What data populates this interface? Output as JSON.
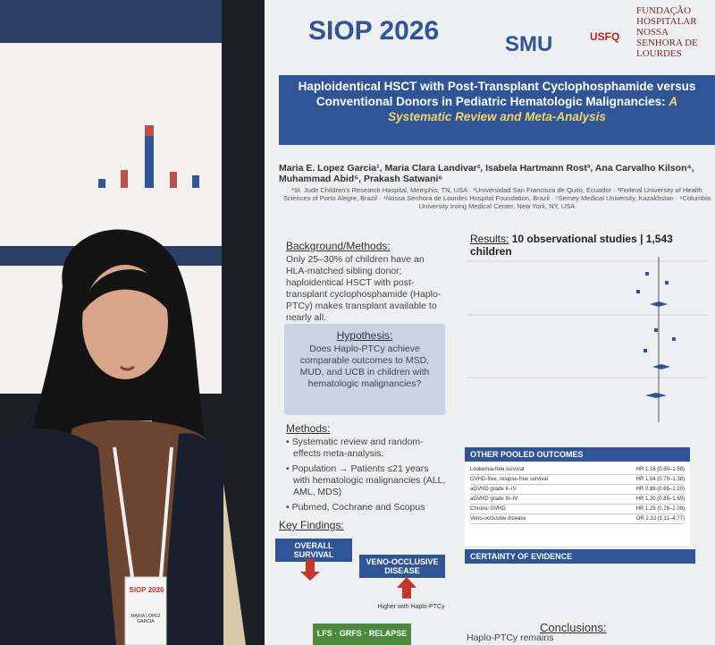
{
  "logos": {
    "siop": "SIOP 2026",
    "smu": "SMU",
    "usfq": "USFQ",
    "lourdes": "FUNDAÇÃO HOSPITALAR NOSSA SENHORA DE LOURDES"
  },
  "poster": {
    "title": "Haploidentical HSCT with Post-Transplant Cyclophosphamide versus Conventional Donors in Pediatric Hematologic Malignancies:",
    "title_highlight": "A Systematic Review and Meta-Analysis",
    "authors": "Maria E. Lopez Garcia¹, Maria Clara Landivar², Isabela Hartmann Rost³, Ana Carvalho Kilson⁴, Muhammad Abid⁵, Prakash Satwani⁶",
    "affiliations": "¹St. Jude Children's Research Hospital, Memphis, TN, USA · ²Universidad San Francisco de Quito, Ecuador · ³Federal University of Health Sciences of Porto Alegre, Brazil · ⁴Nossa Senhora de Lourdes Hospital Foundation, Brazil · ⁵Semey Medical University, Kazakhstan · ⁶Columbia University Irving Medical Center, New York, NY, USA",
    "background_heading": "Background/Methods:",
    "background_text": "Only 25–30% of children have an HLA-matched sibling donor; haploidentical HSCT with post-transplant cyclophosphamide (Haplo-PTCy) makes transplant available to nearly all.",
    "hypothesis_heading": "Hypothesis:",
    "hypothesis_text": "Does Haplo-PTCy achieve comparable outcomes to MSD, MUD, and UCB in children with hematologic malignancies?",
    "methods_heading": "Methods:",
    "methods": [
      "Systematic review and random-effects meta-analysis.",
      "Population → Patients ≤21 years with hematologic malignancies (ALL, AML, MDS)",
      "Pubmed, Cochrane and Scopus"
    ],
    "key_findings_heading": "Key Findings:",
    "finding_1": "OVERALL SURVIVAL",
    "finding_2": "VENO-OCCLUSIVE DISEASE",
    "finding_2_text": "Higher with Haplo-PTCy",
    "bottom_tags": "LFS · GRFS · RELAPSE",
    "results_heading": "Results:",
    "results_summary": "10 observational studies | 1,543 children",
    "other_outcomes_heading": "OTHER POOLED OUTCOMES",
    "outcomes": [
      [
        "Leukemia-free survival",
        "HR 1.16 (0.80–1.58)"
      ],
      [
        "GVHD-free, relapse-free survival",
        "HR 1.04 (0.79–1.38)"
      ],
      [
        "aGVHD grade II–IV",
        "HR 0.88 (0.65–1.20)"
      ],
      [
        "aGVHD grade III–IV",
        "HR 1.20 (0.85–1.69)"
      ],
      [
        "Chronic GVHD",
        "HR 1.29 (0.78–2.09)"
      ],
      [
        "Veno-occlusive disease",
        "OR 2.32 (1.11–4.77)"
      ]
    ],
    "certainty_heading": "CERTAINTY OF EVIDENCE",
    "conclusions_heading": "Conclusions:",
    "conclusions_text": "Haplo-PTCy remains"
  },
  "badge": {
    "logo": "SIOP 2026",
    "name": "MARIA LOPEZ GARCIA"
  }
}
